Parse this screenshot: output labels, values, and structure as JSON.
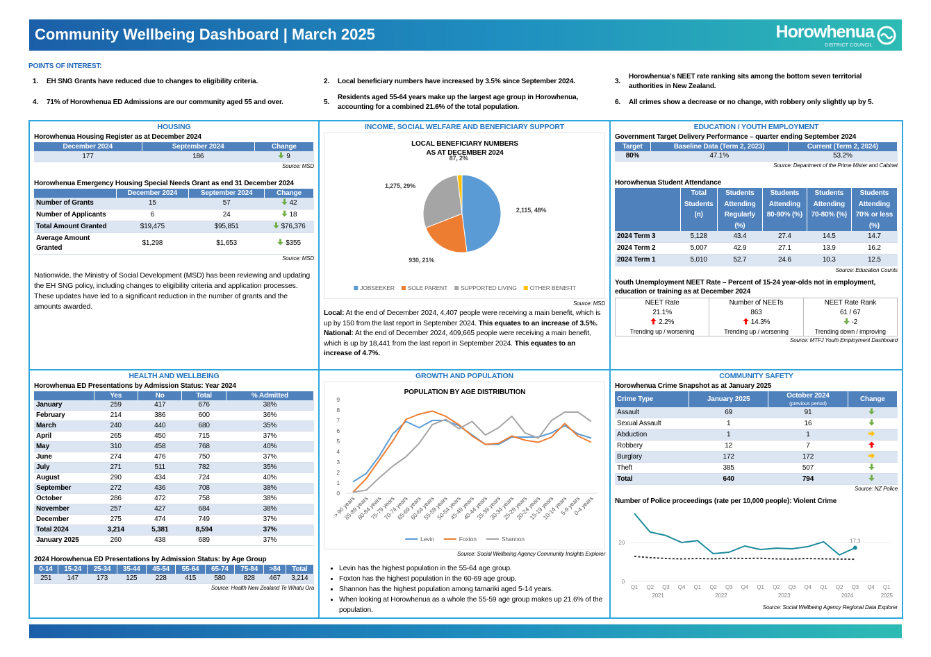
{
  "arrow_colors": {
    "down": "#70ad47",
    "up": "#ff0000",
    "right": "#ffc000"
  },
  "header": {
    "title": "Community Wellbeing Dashboard | March 2025",
    "logo": "Horowhenua",
    "logo_sub": "DISTRICT COUNCIL"
  },
  "poi": {
    "heading": "POINTS OF INTEREST:",
    "items": [
      {
        "num": "1.",
        "text": "EH SNG Grants have reduced due to changes to eligibility criteria."
      },
      {
        "num": "2.",
        "text": "Local beneficiary numbers have increased by 3.5% since September 2024."
      },
      {
        "num": "3.",
        "text": "Horowhenua’s NEET rate ranking sits among the bottom seven territorial authorities in New Zealand."
      },
      {
        "num": "4.",
        "text": "71% of Horowhenua ED Admissions are our community aged 55 and over."
      },
      {
        "num": "5.",
        "text": "Residents aged 55-64 years make up the largest age group in Horowhenua, accounting for a combined 21.6% of the total population."
      },
      {
        "num": "6.",
        "text": "All crimes show a decrease or no change, with robbery only slightly up by 5."
      }
    ]
  },
  "housing": {
    "heading": "HOUSING",
    "register": {
      "title": "Horowhenua Housing Register as at December 2024",
      "table": {
        "columns": [
          "December 2024",
          "September 2024",
          "Change"
        ],
        "rows": [
          [
            "177",
            "186",
            {
              "text": "9",
              "arrow": "down"
            }
          ]
        ]
      },
      "source": "Source: MSD"
    },
    "grant": {
      "title": "Horowhenua Emergency Housing Special Needs Grant as end 31 December 2024",
      "table": {
        "columns": [
          "December 2024",
          "September 2024",
          "Change"
        ],
        "rows": [
          [
            "Number of Grants",
            "15",
            "57",
            {
              "text": "42",
              "arrow": "down"
            }
          ],
          [
            "Number of Applicants",
            "6",
            "24",
            {
              "text": "18",
              "arrow": "down"
            }
          ],
          [
            "Total Amount Granted",
            "$19,475",
            "$95,851",
            {
              "text": "$76,376",
              "arrow": "down"
            }
          ],
          [
            "Average Amount Granted",
            "$1,298",
            "$1,653",
            {
              "text": "$355",
              "arrow": "down"
            }
          ]
        ]
      },
      "source": "Source: MSD"
    },
    "note": "Nationwide, the Ministry of Social Development (MSD) has been reviewing and updating the EH SNG policy, including changes to eligibility criteria and application processes. These updates have led to a significant reduction in the number of grants and the amounts awarded."
  },
  "income": {
    "heading": "INCOME, SOCIAL WELFARE AND BENEFICIARY SUPPORT",
    "chart_data": {
      "type": "pie",
      "title": [
        "LOCAL BENEFICIARY NUMBERS",
        "AS AT DECEMBER 2024"
      ],
      "categories": [
        "JOBSEEKER",
        "SOLE PARENT",
        "SUPPORTED LIVING",
        "OTHER BENEFIT"
      ],
      "values": [
        2115,
        930,
        1275,
        87
      ],
      "value_labels": [
        "2,115, 48%",
        "930, 21%",
        "1,275, 29%",
        "87, 2%"
      ],
      "colors": [
        "#5b9bd5",
        "#ed7d31",
        "#a5a5a5",
        "#ffc000"
      ],
      "legend": "bottom"
    },
    "source": "Source: MSD",
    "paragraphs": [
      [
        {
          "text": "Local:",
          "bold": true
        },
        {
          "text": " At the end of December 2024, 4,407 people were receiving a main benefit, which is up by 150 from the last report in September 2024. "
        },
        {
          "text": " This equates to an increase of 3.5%.",
          "bold": true
        }
      ],
      [
        {
          "text": "National:",
          "bold": true
        },
        {
          "text": " At the end of December 2024, 409,665 people were receiving a main benefit, which is up by 18,441 from the last report in September 2024. "
        },
        {
          "text": " This equates to an increase of 4.7%.",
          "bold": true
        }
      ]
    ]
  },
  "education": {
    "heading": "EDUCATION / YOUTH EMPLOYMENT",
    "target": {
      "title": "Government Target Delivery Performance – quarter ending September 2024",
      "table": {
        "columns": [
          "Target",
          "Baseline Data (Term 2, 2023)",
          "Current (Term 2, 2024)"
        ],
        "rows": [
          [
            "80%",
            "47.1%",
            "53.2%"
          ]
        ]
      },
      "source": "Source: Department of the Prime Mister and Cabinet"
    },
    "attendance": {
      "title": "Horowhenua Student Attendance",
      "table": {
        "columns": [
          "Total Students (n)",
          "Students Attending Regularly (%)",
          "Students Attending 80-90% (%)",
          "Students Attending 70-80% (%)",
          "Students Attending 70% or less (%)"
        ],
        "rows": [
          [
            "2024 Term 3",
            "5,128",
            "43.4",
            "27.4",
            "14.5",
            "14.7"
          ],
          [
            "2024 Term 2",
            "5,007",
            "42.9",
            "27.1",
            "13.9",
            "16.2"
          ],
          [
            "2024 Term 1",
            "5,010",
            "52.7",
            "24.6",
            "10.3",
            "12.5"
          ]
        ]
      },
      "source": "Source: Education Counts"
    },
    "neet": {
      "title": "Youth Unemployment NEET Rate – Percent of 15-24 year-olds not in employment, education or training as at December 2024",
      "boxes": [
        {
          "label": "NEET Rate",
          "value": "21.1%",
          "change": {
            "text": "2.2%",
            "arrow": "up"
          },
          "trend": "Trending up / worsening"
        },
        {
          "label": "Number of NEETs",
          "value": "863",
          "change": {
            "text": "14.3%",
            "arrow": "up"
          },
          "trend": "Trending up / worsening"
        },
        {
          "label": "NEET Rate Rank",
          "value": "61 / 67",
          "change": {
            "text": "-2",
            "arrow": "down"
          },
          "trend": "Trending down / improving"
        }
      ],
      "source": "Source: MTFJ Youth Employment Dashboard"
    }
  },
  "health": {
    "heading": "HEALTH AND WELLBEING",
    "ed": {
      "title": "Horowhenua ED Presentations by Admission Status: Year 2024",
      "table": {
        "columns": [
          "Yes",
          "No",
          "Total",
          "% Admitted"
        ],
        "bold_rows": [
          12
        ],
        "rows": [
          [
            "January",
            "259",
            "417",
            "676",
            "38%"
          ],
          [
            "February",
            "214",
            "386",
            "600",
            "36%"
          ],
          [
            "March",
            "240",
            "440",
            "680",
            "35%"
          ],
          [
            "April",
            "265",
            "450",
            "715",
            "37%"
          ],
          [
            "May",
            "310",
            "458",
            "768",
            "40%"
          ],
          [
            "June",
            "274",
            "476",
            "750",
            "37%"
          ],
          [
            "July",
            "271",
            "511",
            "782",
            "35%"
          ],
          [
            "August",
            "290",
            "434",
            "724",
            "40%"
          ],
          [
            "September",
            "272",
            "436",
            "708",
            "38%"
          ],
          [
            "October",
            "286",
            "472",
            "758",
            "38%"
          ],
          [
            "November",
            "257",
            "427",
            "684",
            "38%"
          ],
          [
            "December",
            "275",
            "474",
            "749",
            "37%"
          ],
          [
            "Total 2024",
            "3,214",
            "5,381",
            "8,594",
            "37%"
          ],
          [
            "January 2025",
            "260",
            "438",
            "689",
            "37%"
          ]
        ]
      }
    },
    "age": {
      "title": "2024 Horowhenua ED Presentations by Admission Status: by Age Group",
      "table": {
        "columns": [
          "0-14",
          "15-24",
          "25-34",
          "35-44",
          "45-54",
          "55-64",
          "65-74",
          "75-84",
          ">84",
          "Total"
        ],
        "rows": [
          [
            "251",
            "147",
            "173",
            "125",
            "228",
            "415",
            "580",
            "828",
            "467",
            "3,214"
          ]
        ]
      },
      "source": "Source: Health New Zealand Te Whatu Ora"
    }
  },
  "growth": {
    "heading": "GROWTH AND POPULATION",
    "chart_data": {
      "type": "line",
      "title": "POPULATION BY AGE DISTRIBUTION",
      "categories": [
        "> 90 years",
        "85-89 years",
        "80-84 years",
        "75-79 years",
        "70-74 years",
        "65-69 years",
        "60-64 years",
        "55-59 years",
        "50-54 years",
        "45-49 years",
        "40-44 years",
        "35-39 years",
        "30-34 years",
        "25-29 years",
        "20-24 years",
        "15-19 years",
        "10-14 years",
        "5-9 years",
        "0-4 years"
      ],
      "series": [
        {
          "name": "Levin",
          "color": "#5b9bd5",
          "values": [
            1.1,
            1.9,
            3.6,
            5.7,
            6.9,
            6.3,
            7.0,
            7.0,
            6.5,
            5.6,
            4.7,
            4.7,
            5.4,
            5.4,
            5.4,
            5.8,
            6.5,
            5.7,
            5.3
          ]
        },
        {
          "name": "Foxton",
          "color": "#ed7d31",
          "values": [
            0.1,
            1.4,
            3.2,
            5.0,
            7.1,
            7.6,
            7.9,
            7.4,
            6.6,
            5.5,
            4.7,
            4.8,
            5.5,
            5.1,
            4.9,
            5.4,
            6.7,
            5.5,
            4.9
          ]
        },
        {
          "name": "Shannon",
          "color": "#a5a5a5",
          "values": [
            0.1,
            0.3,
            1.5,
            2.6,
            3.5,
            4.8,
            6.6,
            7.1,
            6.2,
            6.9,
            5.6,
            6.3,
            7.4,
            5.8,
            5.3,
            7.0,
            7.8,
            7.8,
            6.9
          ]
        }
      ],
      "ylim": [
        0,
        9
      ],
      "yticks": [
        0,
        1,
        2,
        3,
        4,
        5,
        6,
        7,
        8,
        9
      ],
      "grid": false,
      "legend": "bottom"
    },
    "source": "Source: Social Wellbeing Agency Community Insights Explorer",
    "bullets": [
      "Levin has the highest population in the 55-64 age group.",
      "Foxton has the highest population in the 60-69 age group.",
      "Shannon has the highest population among tamariki aged 5-14 years.",
      "When looking at Horowhenua as a whole the 55-59 age group makes up 21.6% of the population."
    ]
  },
  "safety": {
    "heading": "COMMUNITY SAFETY",
    "crime": {
      "title": "Horowhenua Crime Snapshot as at January 2025",
      "table": {
        "columns": [
          "Crime Type",
          "January 2025",
          {
            "label": "October 2024",
            "note": "(previous period)"
          },
          "Change"
        ],
        "bold_rows": [
          6
        ],
        "rows": [
          [
            "Assault",
            "69",
            "91",
            {
              "arrow": "down"
            }
          ],
          [
            "Sexual Assault",
            "1",
            "16",
            {
              "arrow": "down"
            }
          ],
          [
            "Abduction",
            "1",
            "1",
            {
              "arrow": "right"
            }
          ],
          [
            "Robbery",
            "12",
            "7",
            {
              "arrow": "up"
            }
          ],
          [
            "Burglary",
            "172",
            "172",
            {
              "arrow": "right"
            }
          ],
          [
            "Theft",
            "385",
            "507",
            {
              "arrow": "down"
            }
          ],
          [
            "Total",
            "640",
            "794",
            {
              "arrow": "down"
            }
          ]
        ]
      },
      "source": "Source: NZ Police"
    },
    "police": {
      "title": "Number of Police proceedings (rate per 10,000 people): Violent Crime",
      "chart_data": {
        "type": "line",
        "categories": [
          "Q1",
          "Q2",
          "Q3",
          "Q4",
          "Q1",
          "Q2",
          "Q3",
          "Q4",
          "Q1",
          "Q2",
          "Q3",
          "Q4",
          "Q1",
          "Q2",
          "Q3",
          "Q4",
          "Q1"
        ],
        "years": [
          "2021",
          "2022",
          "2023",
          "2024",
          "2025"
        ],
        "series": [
          {
            "color": "#1b8a9a",
            "dash": false,
            "values": [
              35,
              25.4,
              23.6,
              20,
              21,
              14.3,
              15,
              18.2,
              16.4,
              17.1,
              16.8,
              17.9,
              20.4,
              13.6,
              17.3,
              null,
              null
            ]
          },
          {
            "color": "#333333",
            "dash": true,
            "values": [
              12.9,
              12.2,
              11.8,
              11.6,
              11.8,
              11.6,
              11.9,
              11.8,
              11.9,
              11.6,
              11.5,
              11.8,
              11.6,
              11.5,
              11.4,
              null,
              null
            ]
          }
        ],
        "ylim": [
          0,
          35
        ],
        "yticks": [
          0,
          20
        ],
        "grid": true
      },
      "source": "Source: Social Wellbeing Agency Regional Data Explorer"
    }
  }
}
